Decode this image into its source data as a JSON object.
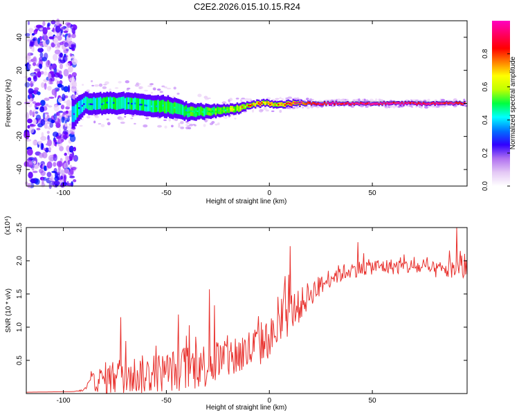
{
  "title": "C2E2.2026.015.10.15.R24",
  "chart_data": [
    {
      "type": "heatmap",
      "name": "spectrogram",
      "xlabel": "Height of straight line (km)",
      "ylabel": "Frequency (Hz)",
      "xlim": [
        -118,
        96
      ],
      "ylim": [
        -50,
        50
      ],
      "xticks": [
        -100,
        -50,
        0,
        50
      ],
      "xtick_labels": [
        "-100",
        "-50",
        "0",
        "50"
      ],
      "yticks": [
        -40,
        -20,
        0,
        20,
        40
      ],
      "ytick_labels": [
        "-40",
        "-20",
        "0",
        "20",
        "40"
      ],
      "colorbar": {
        "label": "Normalized spectral amplitude",
        "range": [
          0,
          1
        ],
        "ticks": [
          0.0,
          0.2,
          0.4,
          0.6,
          0.8
        ],
        "tick_labels": [
          "0.0",
          "0.2",
          "0.4",
          "0.6",
          "0.8"
        ],
        "colors": [
          "#ffffff",
          "#e7c8f5",
          "#7a00ff",
          "#0000ff",
          "#00ffff",
          "#00ff00",
          "#ffff00",
          "#ff0000",
          "#ff00aa"
        ]
      },
      "ridge": {
        "x": [
          -95,
          -90,
          -80,
          -70,
          -60,
          -50,
          -40,
          -30,
          -20,
          -15,
          -10,
          -5,
          0,
          5,
          10,
          20,
          40,
          60,
          80,
          95
        ],
        "freq": [
          -6,
          0,
          0,
          0,
          -1,
          -2,
          -5,
          -5,
          -4,
          -3,
          -1,
          0,
          0,
          -1,
          0,
          0,
          0,
          0,
          0,
          0
        ],
        "spread": [
          8,
          6,
          6,
          6,
          6,
          6,
          5,
          4,
          3,
          3,
          2,
          2,
          2,
          2,
          2,
          1,
          1,
          1,
          1,
          1
        ],
        "amplitude": [
          0.3,
          0.35,
          0.4,
          0.4,
          0.4,
          0.45,
          0.5,
          0.55,
          0.6,
          0.7,
          0.75,
          0.8,
          0.75,
          0.8,
          0.85,
          0.9,
          0.92,
          0.93,
          0.92,
          0.9
        ]
      },
      "noise_region": [
        -118,
        -96
      ]
    },
    {
      "type": "line",
      "name": "snr",
      "xlabel": "Height of straight line (km)",
      "ylabel": "SNR (10 * v/v)",
      "y_multiplier": "(x10⁴)",
      "xlim": [
        -118,
        96
      ],
      "ylim": [
        0,
        2.5
      ],
      "xticks": [
        -100,
        -50,
        0,
        50
      ],
      "xtick_labels": [
        "-100",
        "-50",
        "0",
        "50"
      ],
      "yticks": [
        0.5,
        1.0,
        1.5,
        2.0,
        2.5
      ],
      "ytick_labels": [
        "0.5",
        "1.0",
        "1.5",
        "2.0",
        "2.5"
      ],
      "color": "#e8312d",
      "envelope": {
        "x": [
          -118,
          -95,
          -90,
          -87,
          -80,
          -70,
          -60,
          -50,
          -40,
          -30,
          -20,
          -10,
          -5,
          0,
          5,
          8,
          10,
          15,
          20,
          25,
          30,
          40,
          50,
          60,
          70,
          80,
          90,
          96
        ],
        "y": [
          0.02,
          0.03,
          0.05,
          0.15,
          0.2,
          0.25,
          0.25,
          0.3,
          0.35,
          0.4,
          0.5,
          0.6,
          0.7,
          0.8,
          0.95,
          1.1,
          1.2,
          1.3,
          1.5,
          1.6,
          1.75,
          1.85,
          1.9,
          1.9,
          1.9,
          1.85,
          1.85,
          1.9
        ],
        "variability": [
          0.0,
          0.0,
          0.02,
          0.1,
          0.25,
          0.3,
          0.3,
          0.3,
          0.35,
          0.35,
          0.35,
          0.35,
          0.35,
          0.3,
          0.3,
          0.35,
          0.3,
          0.25,
          0.2,
          0.15,
          0.15,
          0.12,
          0.12,
          0.12,
          0.12,
          0.12,
          0.15,
          0.25
        ]
      },
      "notable_peaks": [
        {
          "x": -72,
          "y": 1.15
        },
        {
          "x": -29,
          "y": 1.57
        },
        {
          "x": 10,
          "y": 2.22
        },
        {
          "x": 43,
          "y": 2.28
        },
        {
          "x": 91,
          "y": 2.6
        }
      ]
    }
  ]
}
